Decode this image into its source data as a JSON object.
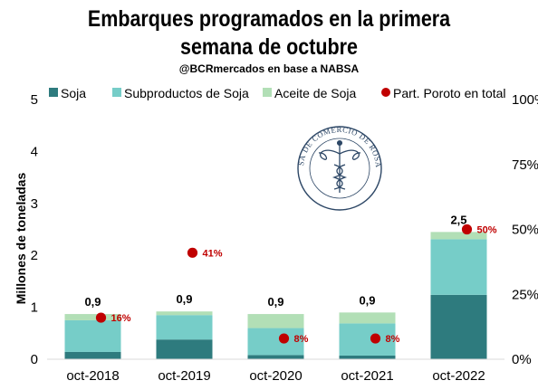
{
  "chart_data": {
    "type": "bar",
    "stacked": true,
    "title_lines": [
      "Embarques programados en la primera",
      "semana de octubre"
    ],
    "subtitle": "@BCRmercados en base a NABSA",
    "ylabel": "Millones de toneladas",
    "ylim": [
      0,
      5
    ],
    "y_ticks": [
      "0",
      "1",
      "2",
      "3",
      "4",
      "5"
    ],
    "y2lim": [
      0,
      100
    ],
    "y2_ticks": [
      "0%",
      "25%",
      "50%",
      "75%",
      "100%"
    ],
    "categories": [
      "oct-2018",
      "oct-2019",
      "oct-2020",
      "oct-2021",
      "oct-2022"
    ],
    "series": [
      {
        "name": "Soja",
        "color": "#2e7b7e",
        "values": [
          0.14,
          0.38,
          0.08,
          0.07,
          1.24
        ]
      },
      {
        "name": "Subproductos de Soja",
        "color": "#76cdc8",
        "values": [
          0.61,
          0.47,
          0.52,
          0.62,
          1.07
        ]
      },
      {
        "name": "Aceite de Soja",
        "color": "#b2dfb6",
        "values": [
          0.12,
          0.07,
          0.27,
          0.21,
          0.14
        ]
      }
    ],
    "totals": [
      "0,9",
      "0,9",
      "0,9",
      "0,9",
      "2,5"
    ],
    "share": {
      "name": "Part. Poroto en total",
      "color": "#c00000",
      "values": [
        16,
        41,
        8,
        8,
        50
      ],
      "labels": [
        "16%",
        "41%",
        "8%",
        "8%",
        "50%"
      ]
    },
    "grid": false,
    "legend_position": "top",
    "logo_text": "BOLSA DE COMERCIO DE ROSARIO"
  }
}
